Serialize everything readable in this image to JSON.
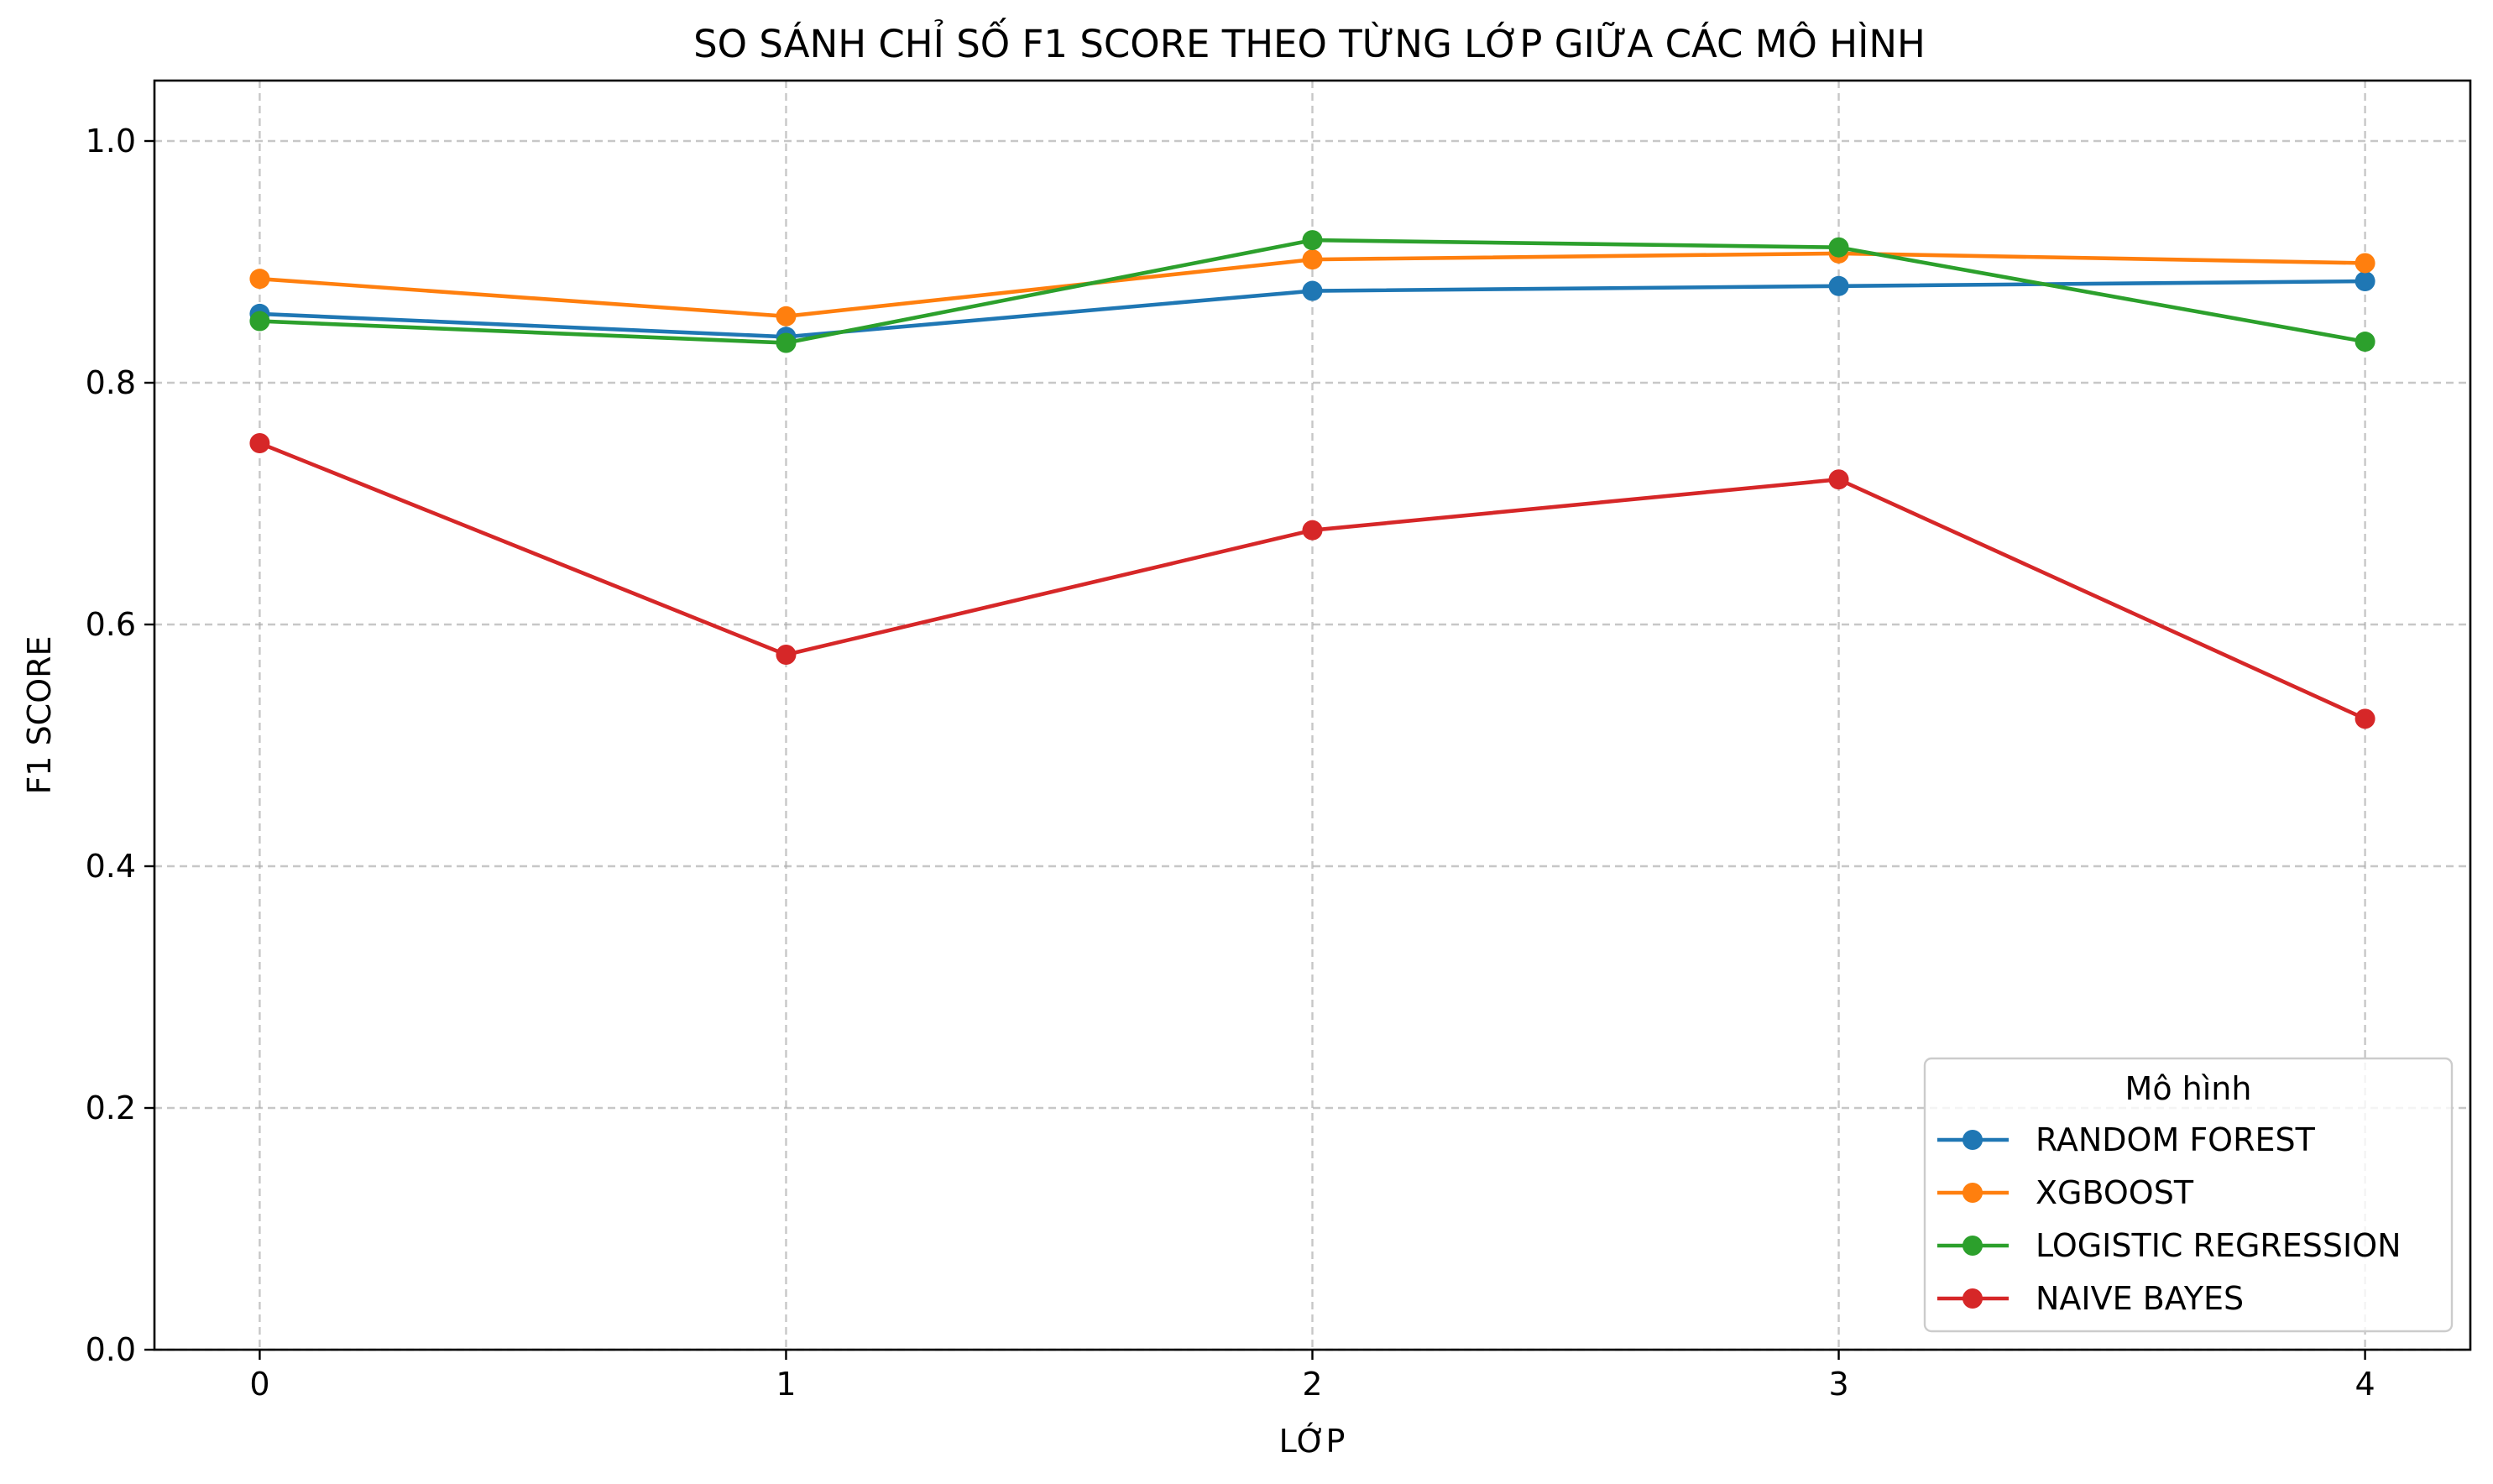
{
  "chart_data": {
    "type": "line",
    "title": "SO SÁNH CHỈ SỐ F1 SCORE THEO TỪNG LỚP GIỮA CÁC MÔ HÌNH",
    "xlabel": "LỚP",
    "ylabel": "F1 SCORE",
    "x": [
      0,
      1,
      2,
      3,
      4
    ],
    "x_ticks": [
      "0",
      "1",
      "2",
      "3",
      "4"
    ],
    "y_ticks": [
      "0.0",
      "0.2",
      "0.4",
      "0.6",
      "0.8",
      "1.0"
    ],
    "y_tick_values": [
      0.0,
      0.2,
      0.4,
      0.6,
      0.8,
      1.0
    ],
    "xlim": [
      -0.2,
      4.2
    ],
    "ylim": [
      0.0,
      1.05
    ],
    "grid": true,
    "legend": {
      "title": "Mô hình",
      "placement": "bottom-right"
    },
    "series": [
      {
        "name": "RANDOM FOREST",
        "color": "#1f77b4",
        "values": [
          0.857,
          0.838,
          0.876,
          0.88,
          0.884
        ]
      },
      {
        "name": "XGBOOST",
        "color": "#ff7f0e",
        "values": [
          0.886,
          0.855,
          0.902,
          0.907,
          0.899
        ]
      },
      {
        "name": "LOGISTIC REGRESSION",
        "color": "#2ca02c",
        "values": [
          0.851,
          0.833,
          0.918,
          0.912,
          0.834
        ]
      },
      {
        "name": "NAIVE BAYES",
        "color": "#d62728",
        "values": [
          0.75,
          0.575,
          0.678,
          0.72,
          0.522
        ]
      }
    ]
  }
}
